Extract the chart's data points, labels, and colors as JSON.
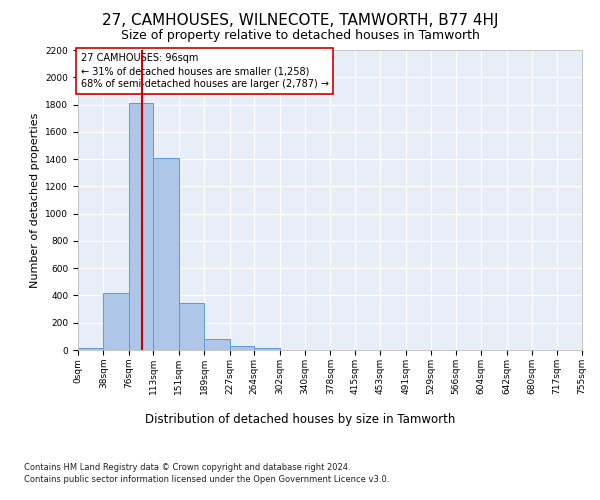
{
  "title": "27, CAMHOUSES, WILNECOTE, TAMWORTH, B77 4HJ",
  "subtitle": "Size of property relative to detached houses in Tamworth",
  "xlabel": "Distribution of detached houses by size in Tamworth",
  "ylabel": "Number of detached properties",
  "bin_edges": [
    0,
    38,
    76,
    113,
    151,
    189,
    227,
    264,
    302,
    340,
    378,
    415,
    453,
    491,
    529,
    566,
    604,
    642,
    680,
    717,
    755
  ],
  "bar_heights": [
    15,
    420,
    1810,
    1405,
    345,
    80,
    30,
    18,
    0,
    0,
    0,
    0,
    0,
    0,
    0,
    0,
    0,
    0,
    0,
    0
  ],
  "bar_color": "#aec6e8",
  "bar_edge_color": "#5b9bd5",
  "property_size": 96,
  "vline_color": "#cc0000",
  "annotation_text": "27 CAMHOUSES: 96sqm\n← 31% of detached houses are smaller (1,258)\n68% of semi-detached houses are larger (2,787) →",
  "annotation_box_color": "#ffffff",
  "annotation_box_edge_color": "#cc0000",
  "ylim": [
    0,
    2200
  ],
  "yticks": [
    0,
    200,
    400,
    600,
    800,
    1000,
    1200,
    1400,
    1600,
    1800,
    2000,
    2200
  ],
  "background_color": "#e8eef7",
  "grid_color": "#ffffff",
  "footer_line1": "Contains HM Land Registry data © Crown copyright and database right 2024.",
  "footer_line2": "Contains public sector information licensed under the Open Government Licence v3.0.",
  "title_fontsize": 11,
  "subtitle_fontsize": 9,
  "tick_label_fontsize": 6.5,
  "ylabel_fontsize": 8,
  "xlabel_fontsize": 8.5,
  "annotation_fontsize": 7,
  "footer_fontsize": 6
}
